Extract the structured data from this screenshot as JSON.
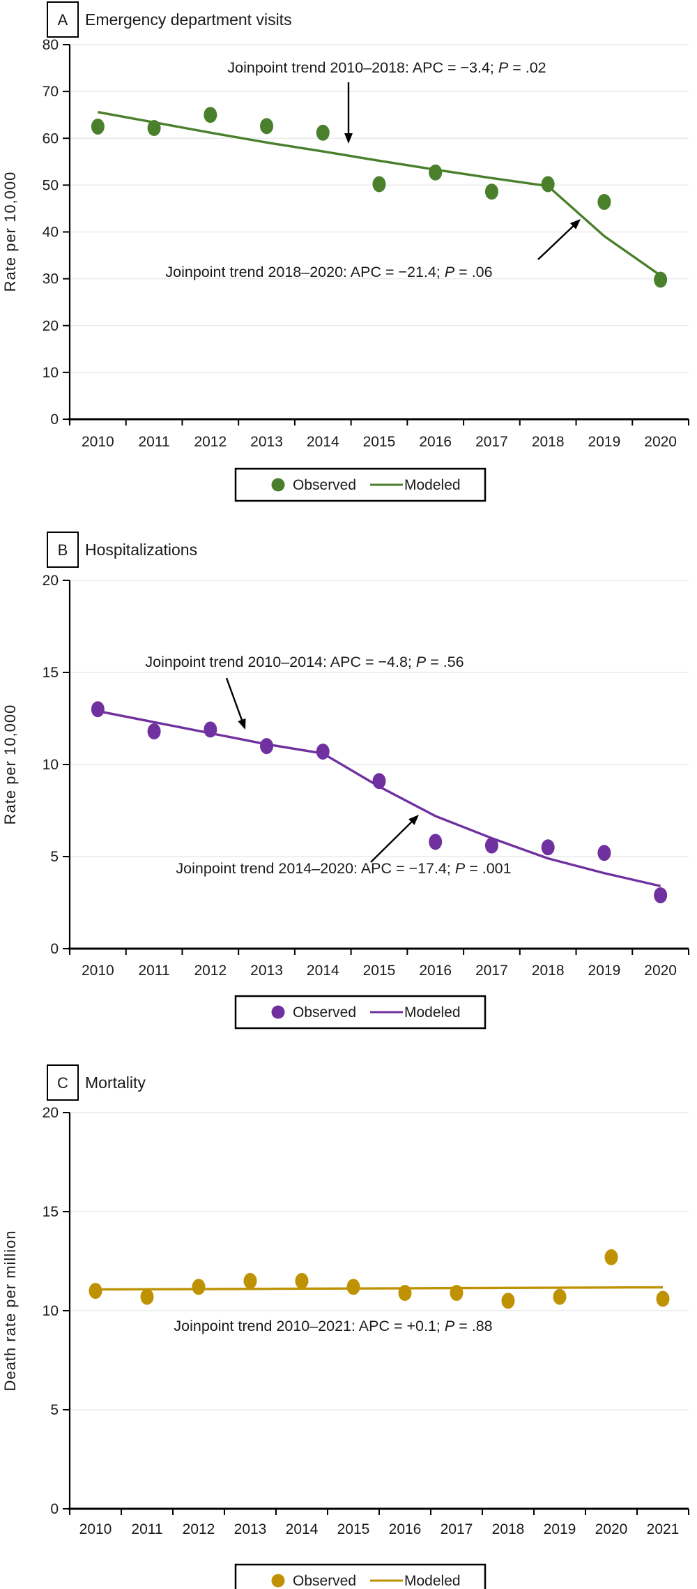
{
  "chart_data": [
    {
      "type": "scatter",
      "panel_label": "A",
      "title": "Emergency department visits",
      "ylabel": "Rate per 10,000",
      "ylim": [
        0,
        80
      ],
      "yticks": [
        0,
        10,
        20,
        30,
        40,
        50,
        60,
        70,
        80
      ],
      "categories": [
        "2010",
        "2011",
        "2012",
        "2013",
        "2014",
        "2015",
        "2016",
        "2017",
        "2018",
        "2019",
        "2020"
      ],
      "color": "#4a7f2c",
      "series": [
        {
          "name": "Observed",
          "style": "points",
          "values": [
            62.5,
            62.2,
            65.0,
            62.6,
            61.2,
            50.2,
            52.7,
            48.6,
            50.2,
            46.4,
            29.8
          ]
        },
        {
          "name": "Modeled",
          "style": "line",
          "values": [
            65.6,
            63.4,
            61.2,
            59.1,
            57.2,
            55.2,
            53.3,
            51.5,
            49.8,
            39.1,
            30.7
          ]
        }
      ],
      "annotations": [
        {
          "prefix": "Joinpoint trend 2010–2018: APC = −3.4; ",
          "p_label": "P",
          "suffix": " = .02"
        },
        {
          "prefix": "Joinpoint trend 2018–2020: APC = −21.4; ",
          "p_label": "P",
          "suffix": " = .06"
        }
      ],
      "legend": {
        "observed": "Observed",
        "modeled": "Modeled"
      },
      "grid": "horizontal",
      "legend_position": "bottom-center"
    },
    {
      "type": "scatter",
      "panel_label": "B",
      "title": "Hospitalizations",
      "ylabel": "Rate per 10,000",
      "ylim": [
        0,
        20
      ],
      "yticks": [
        0,
        5,
        10,
        15,
        20
      ],
      "categories": [
        "2010",
        "2011",
        "2012",
        "2013",
        "2014",
        "2015",
        "2016",
        "2017",
        "2018",
        "2019",
        "2020"
      ],
      "color": "#7030a0",
      "series": [
        {
          "name": "Observed",
          "style": "points",
          "values": [
            13.0,
            11.8,
            11.9,
            11.0,
            10.7,
            9.1,
            5.8,
            5.6,
            5.5,
            5.2,
            2.9
          ]
        },
        {
          "name": "Modeled",
          "style": "line",
          "values": [
            12.9,
            12.3,
            11.7,
            11.1,
            10.6,
            8.8,
            7.2,
            6.0,
            4.9,
            4.1,
            3.4
          ]
        }
      ],
      "annotations": [
        {
          "prefix": "Joinpoint trend 2010–2014: APC = −4.8; ",
          "p_label": "P",
          "suffix": " = .56"
        },
        {
          "prefix": "Joinpoint trend 2014–2020: APC = −17.4; ",
          "p_label": "P",
          "suffix": " = .001"
        }
      ],
      "legend": {
        "observed": "Observed",
        "modeled": "Modeled"
      },
      "grid": "horizontal",
      "legend_position": "bottom-center"
    },
    {
      "type": "scatter",
      "panel_label": "C",
      "title": "Mortality",
      "ylabel": "Death rate per million",
      "ylim": [
        0,
        20
      ],
      "yticks": [
        0,
        5,
        10,
        15,
        20
      ],
      "categories": [
        "2010",
        "2011",
        "2012",
        "2013",
        "2014",
        "2015",
        "2016",
        "2017",
        "2018",
        "2019",
        "2020",
        "2021"
      ],
      "color": "#bf9204",
      "series": [
        {
          "name": "Observed",
          "style": "points",
          "values": [
            11.0,
            10.7,
            11.2,
            11.5,
            11.5,
            11.2,
            10.9,
            10.9,
            10.5,
            10.7,
            12.7,
            10.6
          ]
        },
        {
          "name": "Modeled",
          "style": "line",
          "values": [
            11.07,
            11.08,
            11.09,
            11.1,
            11.11,
            11.12,
            11.13,
            11.14,
            11.15,
            11.16,
            11.17,
            11.18
          ]
        }
      ],
      "annotations": [
        {
          "prefix": "Joinpoint trend 2010–2021: APC = +0.1; ",
          "p_label": "P",
          "suffix": " = .88"
        }
      ],
      "legend": {
        "observed": "Observed",
        "modeled": "Modeled"
      },
      "grid": "horizontal",
      "legend_position": "bottom-center"
    }
  ]
}
